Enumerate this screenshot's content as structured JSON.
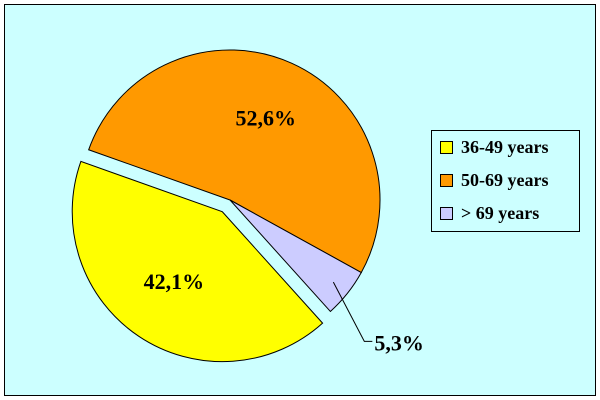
{
  "chart_data": {
    "type": "pie",
    "categories": [
      "36-49 years",
      "50-69 years",
      "> 69 years"
    ],
    "values": [
      42.1,
      52.6,
      5.3
    ],
    "value_labels": [
      "42,1%",
      "52,6%",
      "5,3%"
    ],
    "colors": [
      "#ffff00",
      "#ff9900",
      "#ccccff"
    ],
    "legend": "right"
  }
}
